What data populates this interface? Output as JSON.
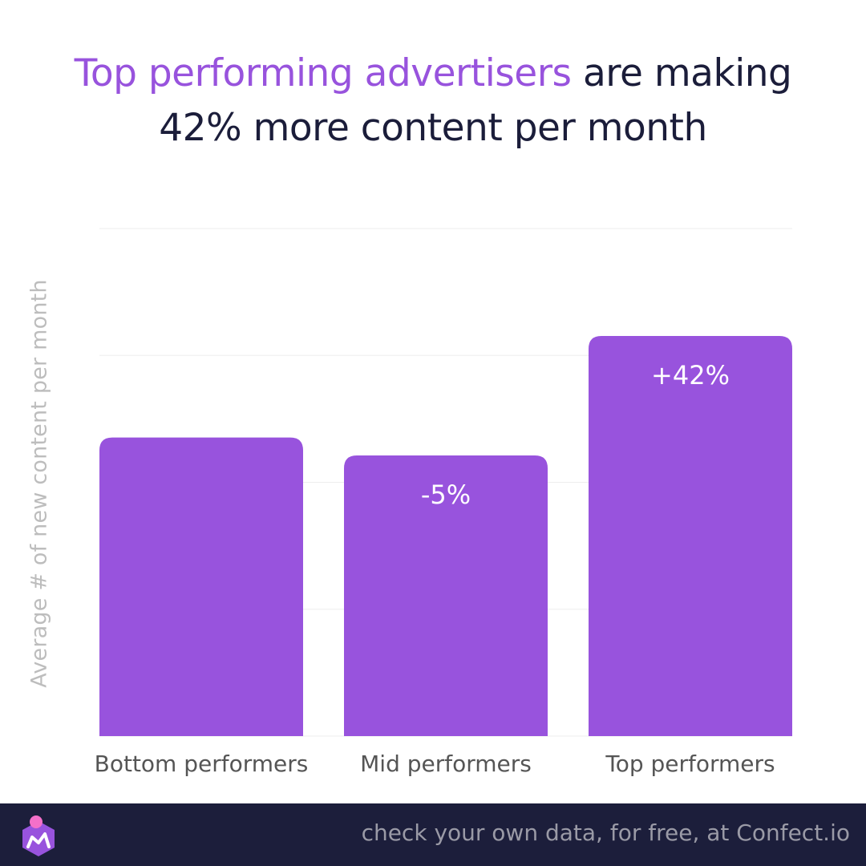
{
  "title": {
    "highlight": "Top performing advertisers",
    "rest_line1": " are making",
    "line2": "42% more content per month"
  },
  "colors": {
    "bar": "#9853dd",
    "highlight": "#9853dd",
    "title_dark": "#1b1d3a",
    "footer_bg": "#1c1e3b",
    "gridline": "#eeeeee"
  },
  "chart_data": {
    "type": "bar",
    "categories": [
      "Bottom performers",
      "Mid performers",
      "Top performers"
    ],
    "values": [
      100,
      94,
      134
    ],
    "bar_labels": [
      "",
      "-5%",
      "+42%"
    ],
    "ylabel": "Average # of new content per month",
    "ylim": [
      0,
      170
    ],
    "grid": true,
    "ytick_labels_shown": false
  },
  "footer": {
    "text": "check your own data, for free, at Confect.io",
    "logo_icon": "confect-logo-icon"
  }
}
